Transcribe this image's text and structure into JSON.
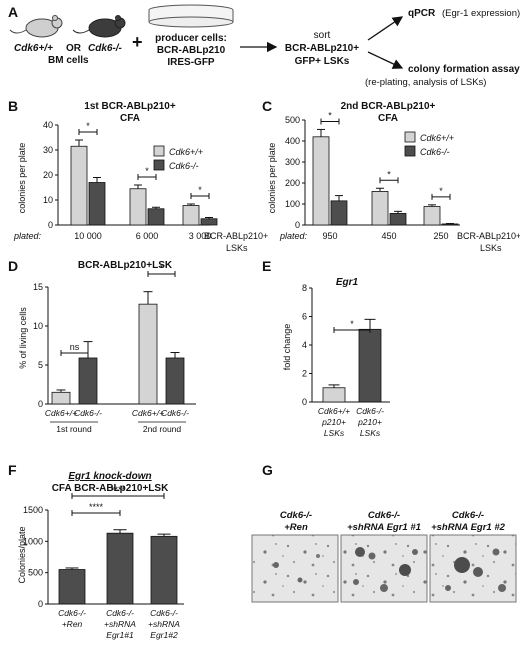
{
  "panel_labels": [
    "A",
    "B",
    "C",
    "D",
    "E",
    "F",
    "G"
  ],
  "panel_a": {
    "mouse1": "Cdk6+/+",
    "or": "OR",
    "mouse2": "Cdk6-/-",
    "bm_cells": "BM cells",
    "plus": "+",
    "producer_line1": "producer cells:",
    "producer_line2": "BCR-ABLp210",
    "producer_line3": "IRES-GFP",
    "sort_line1": "sort",
    "sort_line2": "BCR-ABLp210+",
    "sort_line3": "GFP+ LSKs",
    "out1_a": "qPCR",
    "out1_b": "(Egr-1 expression)",
    "out2_a": "colony formation assay",
    "out2_b": "(re-plating, analysis of LSKs)"
  },
  "colors": {
    "light_bar": "#d4d4d4",
    "dark_bar": "#4d4d4d",
    "axis": "#111111"
  },
  "chart_data": [
    {
      "panel": "B",
      "type": "bar",
      "title_line1": "1st BCR-ABLp210+",
      "title_line2": "CFA",
      "ylabel": "colonies per plate",
      "ylim": [
        0,
        40
      ],
      "yticks": [
        "0",
        "10",
        "20",
        "30",
        "40"
      ],
      "x_prefix": "plated:",
      "categories": [
        "10 000",
        "6 000",
        "3 000"
      ],
      "x_suffix_line1": "BCR-ABLp210+",
      "x_suffix_line2": "LSKs",
      "legend_position": "top-right",
      "series": [
        {
          "name": "Cdk6+/+",
          "values": [
            31.5,
            14.5,
            7.8
          ],
          "errors": [
            2.5,
            1.5,
            0.6
          ]
        },
        {
          "name": "Cdk6-/-",
          "values": [
            17,
            6.5,
            2.5
          ],
          "errors": [
            2,
            0.6,
            0.5
          ]
        }
      ],
      "significance": [
        "*",
        "*",
        "*"
      ]
    },
    {
      "panel": "C",
      "type": "bar",
      "title_line1": "2nd BCR-ABLp210+",
      "title_line2": "CFA",
      "ylabel": "colonies per plate",
      "ylim": [
        0,
        500
      ],
      "yticks": [
        "0",
        "100",
        "200",
        "300",
        "400",
        "500"
      ],
      "x_prefix": "plated:",
      "categories": [
        "950",
        "450",
        "250"
      ],
      "x_suffix_line1": "BCR-ABLp210+",
      "x_suffix_line2": "LSKs",
      "legend_position": "top-right",
      "series": [
        {
          "name": "Cdk6+/+",
          "values": [
            420,
            160,
            88
          ],
          "errors": [
            35,
            15,
            8
          ]
        },
        {
          "name": "Cdk6-/-",
          "values": [
            115,
            55,
            5
          ],
          "errors": [
            25,
            10,
            2
          ]
        }
      ],
      "significance": [
        "*",
        "*",
        "*"
      ]
    },
    {
      "panel": "D",
      "type": "bar",
      "title": "BCR-ABLp210+LSK",
      "ylabel": "% of living cells",
      "ylim": [
        0,
        15
      ],
      "yticks": [
        "0",
        "5",
        "10",
        "15"
      ],
      "categories": [
        "Cdk6+/+",
        "Cdk6-/-",
        "Cdk6+/+",
        "Cdk6-/-"
      ],
      "groups": [
        "1st round",
        "2nd round"
      ],
      "values": [
        1.5,
        5.9,
        12.8,
        5.9
      ],
      "errors": [
        0.3,
        2.1,
        1.6,
        0.7
      ],
      "significance": [
        "ns",
        "*"
      ]
    },
    {
      "panel": "E",
      "type": "bar",
      "title": "Egr1",
      "ylabel": "fold change",
      "ylim": [
        0,
        8
      ],
      "yticks": [
        "0",
        "2",
        "4",
        "6",
        "8"
      ],
      "categories": [
        [
          "Cdk6+/+",
          "p210+",
          "LSKs"
        ],
        [
          "Cdk6-/-",
          "p210+",
          "LSKs"
        ]
      ],
      "values": [
        1.0,
        5.1
      ],
      "errors": [
        0.2,
        0.7
      ],
      "significance": [
        "*"
      ]
    },
    {
      "panel": "F",
      "type": "bar",
      "title_line1": "Egr1 knock-down",
      "title_line2": "CFA BCR-ABLp210+LSK",
      "ylabel": "Colonies/plate",
      "ylim": [
        0,
        1500
      ],
      "yticks": [
        "0",
        "500",
        "1000",
        "1500"
      ],
      "categories": [
        [
          "Cdk6-/-",
          "+Ren"
        ],
        [
          "Cdk6-/-",
          "+shRNA",
          "Egr1#1"
        ],
        [
          "Cdk6-/-",
          "+shRNA",
          "Egr1#2"
        ]
      ],
      "values": [
        550,
        1130,
        1080
      ],
      "errors": [
        25,
        55,
        35
      ],
      "significance": [
        "****",
        "****"
      ]
    }
  ],
  "panel_g": {
    "labels": [
      [
        "Cdk6-/-",
        "+Ren"
      ],
      [
        "Cdk6-/-",
        "+shRNA Egr1 #1"
      ],
      [
        "Cdk6-/-",
        "+shRNA Egr1 #2"
      ]
    ]
  }
}
